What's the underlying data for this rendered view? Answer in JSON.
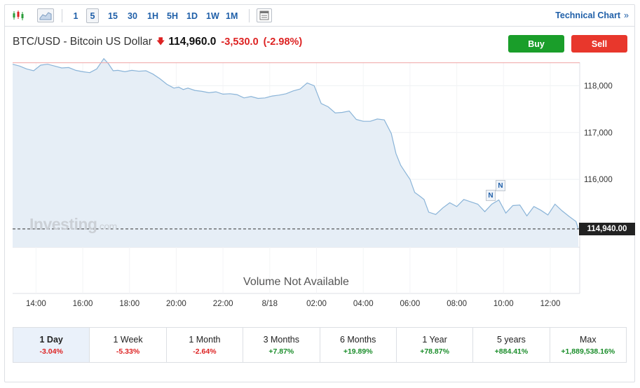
{
  "toolbar": {
    "timeframes": [
      "1",
      "5",
      "15",
      "30",
      "1H",
      "5H",
      "1D",
      "1W",
      "1M"
    ],
    "active_timeframe": "5",
    "technical_chart_label": "Technical Chart",
    "technical_chart_chevron": "»"
  },
  "header": {
    "symbol": "BTC/USD - Bitcoin US Dollar",
    "price": "114,960.0",
    "change": "-3,530.0",
    "change_pct": "(-2.98%)",
    "buy_label": "Buy",
    "sell_label": "Sell"
  },
  "chart": {
    "watermark": "Investing",
    "watermark_suffix": ".com",
    "last_price_tag": "114,940.00",
    "volume_text": "Volume Not Available",
    "news_marker": "N"
  },
  "chart_data": {
    "type": "area",
    "title": "",
    "xlabel": "",
    "ylabel": "",
    "x_ticks": [
      "14:00",
      "16:00",
      "18:00",
      "20:00",
      "22:00",
      "8/18",
      "02:00",
      "04:00",
      "06:00",
      "08:00",
      "10:00",
      "12:00"
    ],
    "y_ticks": [
      118000,
      117000,
      116000
    ],
    "y_tick_labels": [
      "118,000",
      "117,000",
      "116,000"
    ],
    "ylim": [
      114550,
      118500
    ],
    "previous_close": 118490,
    "last_price": 114940,
    "grid": true,
    "series": [
      {
        "x_hours": [
          13.0,
          13.3,
          13.6,
          13.9,
          14.2,
          14.5,
          14.8,
          15.1,
          15.4,
          15.7,
          16.0,
          16.3,
          16.6,
          16.9,
          17.1,
          17.3,
          17.5,
          17.8,
          18.1,
          18.4,
          18.7,
          19.0,
          19.3,
          19.6,
          19.9,
          20.1,
          20.3,
          20.5,
          20.8,
          21.1,
          21.4,
          21.7,
          22.0,
          22.3,
          22.6,
          22.9,
          23.2,
          23.5,
          23.8,
          24.1,
          24.4,
          24.7,
          25.0,
          25.3,
          25.6,
          25.9,
          26.2,
          26.5,
          26.8,
          27.1,
          27.4,
          27.7,
          28.0,
          28.3,
          28.6,
          28.9,
          29.2,
          29.4,
          29.6,
          29.8,
          30.0,
          30.2,
          30.4,
          30.6,
          30.8,
          31.1,
          31.4,
          31.7,
          32.0,
          32.3,
          32.6,
          32.9,
          33.2,
          33.5,
          33.8,
          34.1,
          34.4,
          34.7,
          35.0,
          35.3,
          35.6,
          35.9,
          36.2,
          36.5,
          36.8,
          37.1,
          37.2
        ],
        "values": [
          118460,
          118420,
          118360,
          118320,
          118440,
          118460,
          118420,
          118380,
          118390,
          118330,
          118300,
          118280,
          118360,
          118580,
          118470,
          118320,
          118330,
          118300,
          118330,
          118310,
          118320,
          118250,
          118150,
          118030,
          117950,
          117970,
          117920,
          117950,
          117900,
          117880,
          117850,
          117870,
          117820,
          117830,
          117810,
          117740,
          117770,
          117730,
          117740,
          117780,
          117800,
          117830,
          117890,
          117930,
          118060,
          118000,
          117620,
          117550,
          117420,
          117430,
          117460,
          117280,
          117240,
          117240,
          117290,
          117270,
          116980,
          116550,
          116300,
          116150,
          116000,
          115720,
          115650,
          115570,
          115300,
          115250,
          115390,
          115500,
          115420,
          115570,
          115520,
          115470,
          115310,
          115470,
          115560,
          115280,
          115440,
          115450,
          115220,
          115420,
          115340,
          115240,
          115470,
          115330,
          115210,
          115100,
          114940
        ]
      }
    ],
    "line_color": "#8ab4d8",
    "fill_color": "#e6eef6",
    "prev_close_color": "#f0a5a5"
  },
  "periods": [
    {
      "label": "1 Day",
      "value": "-3.04%",
      "sign": "neg",
      "active": true
    },
    {
      "label": "1 Week",
      "value": "-5.33%",
      "sign": "neg",
      "active": false
    },
    {
      "label": "1 Month",
      "value": "-2.64%",
      "sign": "neg",
      "active": false
    },
    {
      "label": "3 Months",
      "value": "+7.87%",
      "sign": "pos",
      "active": false
    },
    {
      "label": "6 Months",
      "value": "+19.89%",
      "sign": "pos",
      "active": false
    },
    {
      "label": "1 Year",
      "value": "+78.87%",
      "sign": "pos",
      "active": false
    },
    {
      "label": "5 years",
      "value": "+884.41%",
      "sign": "pos",
      "active": false
    },
    {
      "label": "Max",
      "value": "+1,889,538.16%",
      "sign": "pos",
      "active": false
    }
  ]
}
